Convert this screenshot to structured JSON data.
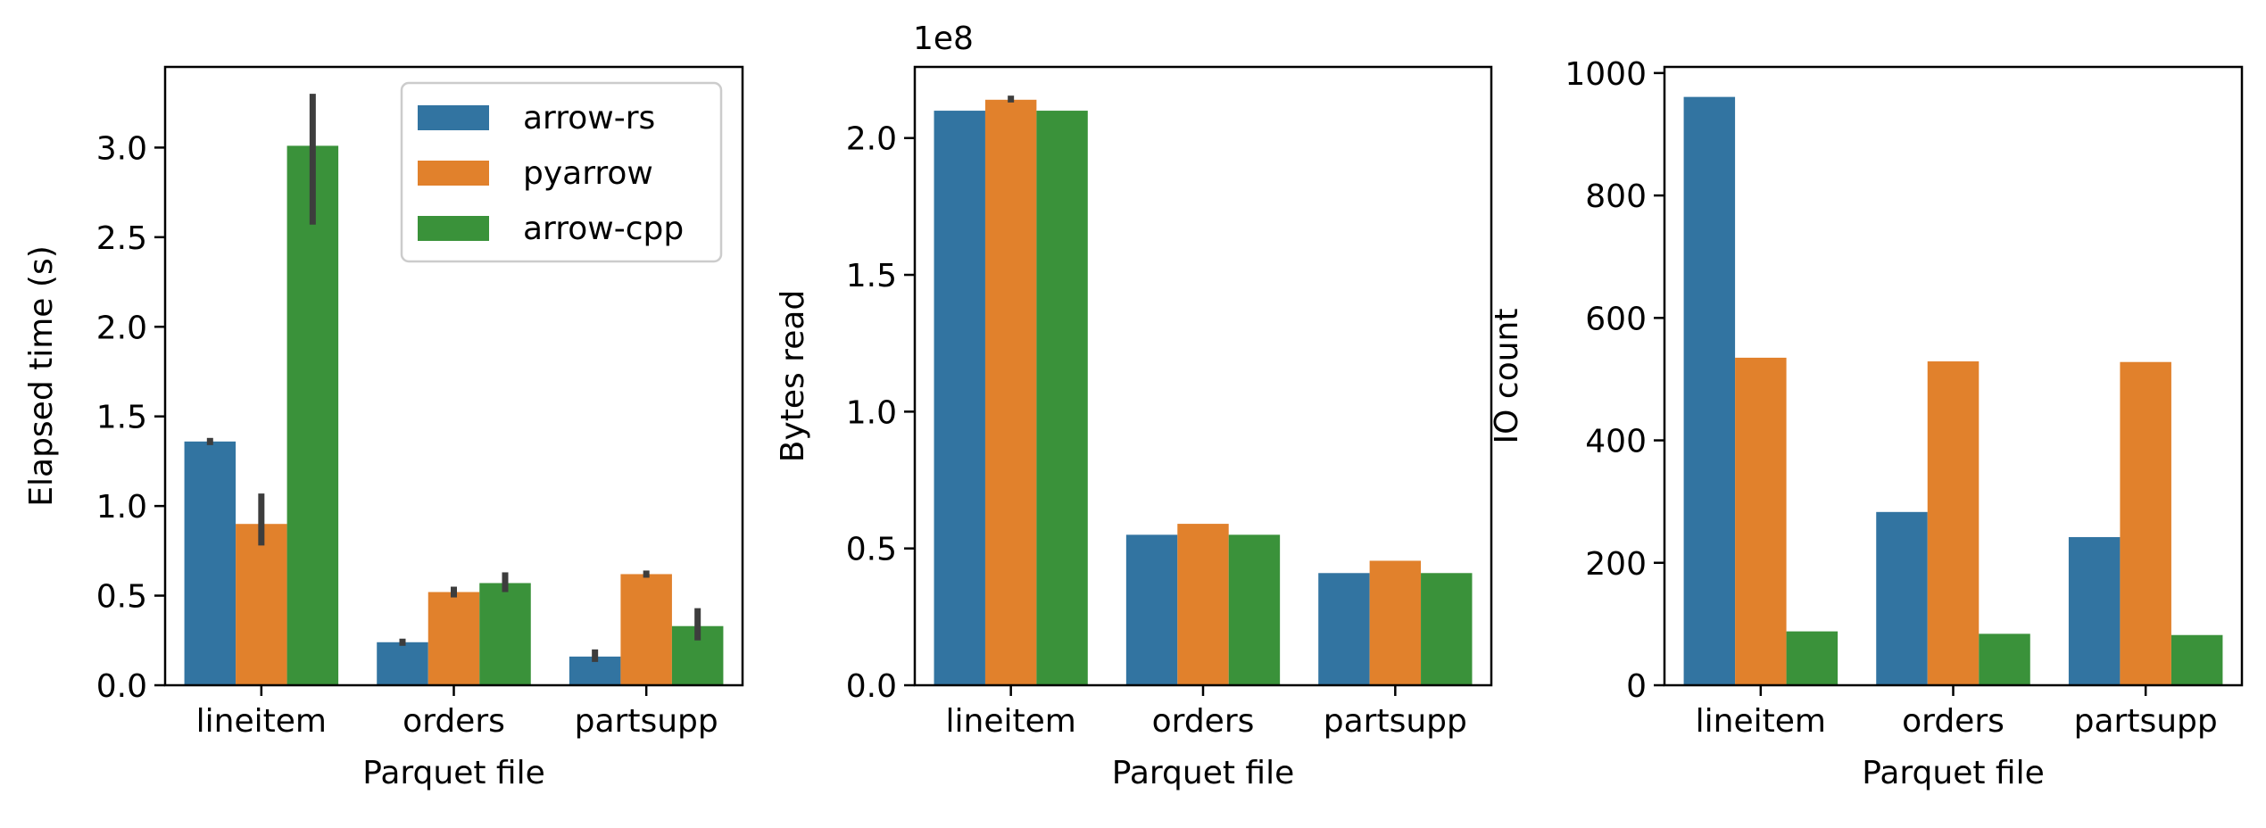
{
  "chart_data": [
    {
      "type": "bar",
      "categories": [
        "lineitem",
        "orders",
        "partsupp"
      ],
      "xlabel": "Parquet file",
      "ylabel": "Elapsed time (s)",
      "ylim": [
        0,
        3.45
      ],
      "yticks": [
        0.0,
        0.5,
        1.0,
        1.5,
        2.0,
        2.5,
        3.0
      ],
      "ytick_labels": [
        "0.0",
        "0.5",
        "1.0",
        "1.5",
        "2.0",
        "2.5",
        "3.0"
      ],
      "legend": "top-right",
      "series": [
        {
          "name": "arrow-rs",
          "color": "#3274a1",
          "values": [
            1.36,
            0.24,
            0.16
          ],
          "error_low": [
            1.34,
            0.22,
            0.13
          ],
          "error_high": [
            1.38,
            0.26,
            0.2
          ]
        },
        {
          "name": "pyarrow",
          "color": "#e1812c",
          "values": [
            0.9,
            0.52,
            0.62
          ],
          "error_low": [
            0.78,
            0.49,
            0.6
          ],
          "error_high": [
            1.07,
            0.55,
            0.64
          ]
        },
        {
          "name": "arrow-cpp",
          "color": "#3a923a",
          "values": [
            3.01,
            0.57,
            0.33
          ],
          "error_low": [
            2.57,
            0.52,
            0.25
          ],
          "error_high": [
            3.3,
            0.63,
            0.43
          ]
        }
      ]
    },
    {
      "type": "bar",
      "categories": [
        "lineitem",
        "orders",
        "partsupp"
      ],
      "xlabel": "Parquet file",
      "ylabel": "Bytes read",
      "offset_label": "1e8",
      "ylim": [
        0,
        2.26
      ],
      "yticks": [
        0.0,
        0.5,
        1.0,
        1.5,
        2.0
      ],
      "ytick_labels": [
        "0.0",
        "0.5",
        "1.0",
        "1.5",
        "2.0"
      ],
      "series": [
        {
          "name": "arrow-rs",
          "color": "#3274a1",
          "values": [
            2.1,
            0.55,
            0.41
          ]
        },
        {
          "name": "pyarrow",
          "color": "#e1812c",
          "values": [
            2.14,
            0.59,
            0.455
          ],
          "error_low": [
            2.13,
            null,
            null
          ],
          "error_high": [
            2.155,
            null,
            null
          ]
        },
        {
          "name": "arrow-cpp",
          "color": "#3a923a",
          "values": [
            2.1,
            0.55,
            0.41
          ]
        }
      ]
    },
    {
      "type": "bar",
      "categories": [
        "lineitem",
        "orders",
        "partsupp"
      ],
      "xlabel": "Parquet file",
      "ylabel": "IO count",
      "ylim": [
        0,
        1010
      ],
      "yticks": [
        0,
        200,
        400,
        600,
        800,
        1000
      ],
      "ytick_labels": [
        "0",
        "200",
        "400",
        "600",
        "800",
        "1000"
      ],
      "series": [
        {
          "name": "arrow-rs",
          "color": "#3274a1",
          "values": [
            961,
            283,
            242
          ]
        },
        {
          "name": "pyarrow",
          "color": "#e1812c",
          "values": [
            535,
            529,
            528
          ]
        },
        {
          "name": "arrow-cpp",
          "color": "#3a923a",
          "values": [
            88,
            84,
            82
          ]
        }
      ]
    }
  ]
}
